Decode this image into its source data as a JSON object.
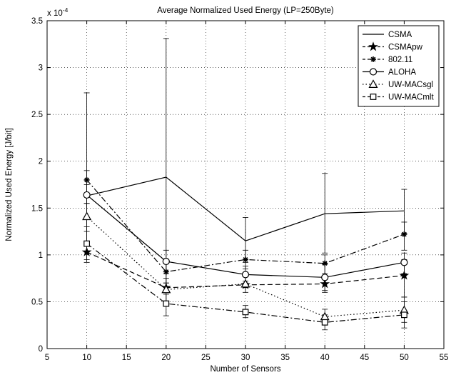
{
  "chart_data": {
    "type": "line",
    "title": "Average Normalized Used Energy (LP=250Byte)",
    "xlabel": "Number of Sensors",
    "ylabel": "Normalized Used Energy [J/bit]",
    "y_multiplier_base": "x 10",
    "y_multiplier_exp": "-4",
    "xlim": [
      5,
      55
    ],
    "ylim": [
      0,
      3.5
    ],
    "x_ticks": [
      5,
      10,
      15,
      20,
      25,
      30,
      35,
      40,
      45,
      50,
      55
    ],
    "y_ticks": [
      0,
      0.5,
      1,
      1.5,
      2,
      2.5,
      3,
      3.5
    ],
    "grid": true,
    "legend_position": "top-right",
    "x": [
      10,
      20,
      30,
      40,
      50
    ],
    "series": [
      {
        "name": "CSMA",
        "marker": "none",
        "dash": "solid",
        "values": [
          1.63,
          1.83,
          1.15,
          1.44,
          1.47
        ],
        "err_low": [
          1.03,
          0.62,
          0.92,
          1.02,
          1.23
        ],
        "err_high": [
          2.73,
          3.31,
          1.4,
          1.87,
          1.7
        ]
      },
      {
        "name": "CSMApw",
        "marker": "star",
        "dash": "dashed",
        "values": [
          1.03,
          0.65,
          0.68,
          0.69,
          0.78
        ],
        "err_low": [
          0.95,
          0.6,
          0.65,
          0.62,
          0.55
        ],
        "err_high": [
          1.1,
          0.7,
          0.72,
          0.75,
          0.95
        ]
      },
      {
        "name": "802.11",
        "marker": "asterisk",
        "dash": "dashdot",
        "values": [
          1.8,
          0.82,
          0.95,
          0.91,
          1.22
        ],
        "err_low": [
          1.55,
          0.7,
          0.85,
          0.8,
          1.05
        ],
        "err_high": [
          1.9,
          0.95,
          1.05,
          1.0,
          1.35
        ]
      },
      {
        "name": "ALOHA",
        "marker": "circle",
        "dash": "solid",
        "values": [
          1.64,
          0.93,
          0.79,
          0.76,
          0.92
        ],
        "err_low": [
          1.4,
          0.8,
          0.7,
          0.6,
          0.8
        ],
        "err_high": [
          1.75,
          1.05,
          0.88,
          0.9,
          1.02
        ]
      },
      {
        "name": "UW-MACsgl",
        "marker": "triangle",
        "dash": "dotted",
        "values": [
          1.41,
          0.63,
          0.69,
          0.34,
          0.41
        ],
        "err_low": [
          1.25,
          0.5,
          0.6,
          0.27,
          0.28
        ],
        "err_high": [
          1.55,
          0.75,
          0.77,
          0.42,
          0.55
        ]
      },
      {
        "name": "UW-MACmlt",
        "marker": "square",
        "dash": "dashdot",
        "values": [
          1.12,
          0.48,
          0.39,
          0.28,
          0.36
        ],
        "err_low": [
          0.92,
          0.35,
          0.33,
          0.2,
          0.22
        ],
        "err_high": [
          1.3,
          0.58,
          0.46,
          0.36,
          0.5
        ]
      }
    ]
  }
}
